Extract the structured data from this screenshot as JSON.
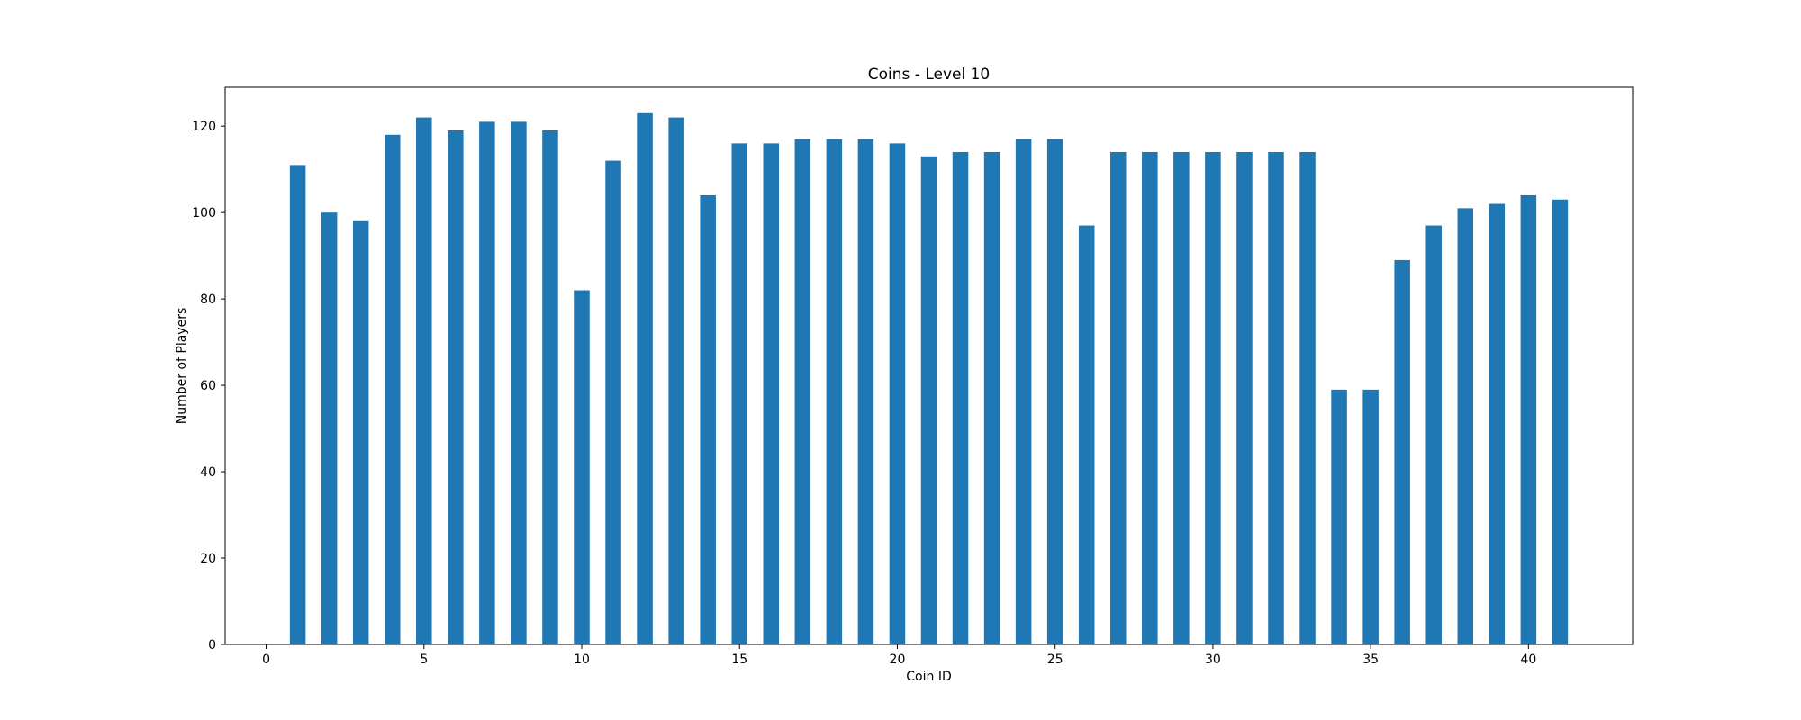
{
  "chart_data": {
    "type": "bar",
    "title": "Coins - Level 10",
    "xlabel": "Coin ID",
    "ylabel": "Number of Players",
    "x": [
      1,
      2,
      3,
      4,
      5,
      6,
      7,
      8,
      9,
      10,
      11,
      12,
      13,
      14,
      15,
      16,
      17,
      18,
      19,
      20,
      21,
      22,
      23,
      24,
      25,
      26,
      27,
      28,
      29,
      30,
      31,
      32,
      33,
      34,
      35,
      36,
      37,
      38,
      39,
      40,
      41
    ],
    "values": [
      111,
      100,
      98,
      118,
      122,
      119,
      121,
      121,
      119,
      82,
      112,
      123,
      122,
      104,
      116,
      116,
      117,
      117,
      117,
      116,
      113,
      114,
      114,
      117,
      117,
      97,
      114,
      114,
      114,
      114,
      114,
      114,
      114,
      59,
      59,
      89,
      97,
      101,
      102,
      104,
      103
    ],
    "xlim": [
      -1.3,
      43.3
    ],
    "ylim": [
      0,
      129
    ],
    "xticks": [
      "0",
      "5",
      "10",
      "15",
      "20",
      "25",
      "30",
      "35",
      "40"
    ],
    "yticks": [
      "0",
      "20",
      "40",
      "60",
      "80",
      "100",
      "120"
    ],
    "bar_color": "#1f77b4",
    "grid": false,
    "legend": "none"
  }
}
